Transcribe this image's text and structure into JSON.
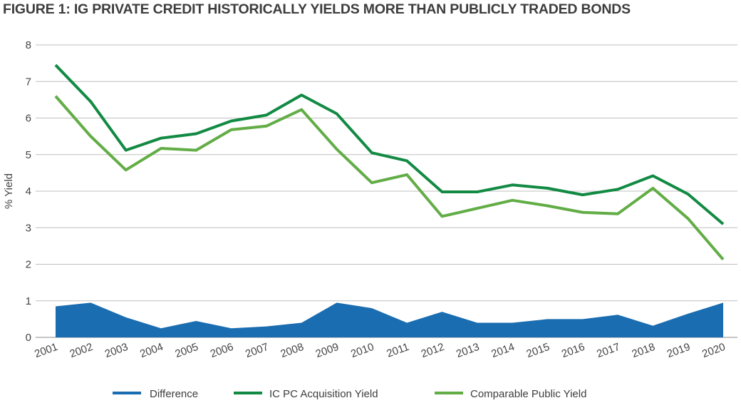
{
  "chart_data": {
    "type": "line",
    "title": "FIGURE 1: IG PRIVATE CREDIT HISTORICALLY YIELDS MORE THAN PUBLICLY TRADED BONDS",
    "xlabel": "",
    "ylabel": "% Yield",
    "ylim": [
      0,
      8
    ],
    "yticks": [
      "0",
      "1",
      "2",
      "3",
      "4",
      "5",
      "6",
      "7",
      "8"
    ],
    "grid": true,
    "legend_position": "bottom",
    "categories": [
      "2001",
      "2002",
      "2003",
      "2004",
      "2005",
      "2006",
      "2007",
      "2008",
      "2009",
      "2010",
      "2011",
      "2012",
      "2013",
      "2014",
      "2015",
      "2016",
      "2017",
      "2018",
      "2019",
      "2020"
    ],
    "series": [
      {
        "name": "Difference",
        "type": "area",
        "color": "#1a6db0",
        "values": [
          0.85,
          0.95,
          0.55,
          0.25,
          0.45,
          0.25,
          0.3,
          0.4,
          0.95,
          0.8,
          0.4,
          0.7,
          0.4,
          0.4,
          0.5,
          0.5,
          0.62,
          0.32,
          0.65,
          0.95
        ]
      },
      {
        "name": "IC PC Acquisition Yield",
        "type": "line",
        "color": "#128a43",
        "values": [
          7.45,
          6.45,
          5.12,
          5.45,
          5.57,
          5.92,
          6.08,
          6.63,
          6.12,
          5.05,
          4.83,
          3.98,
          3.98,
          4.17,
          4.08,
          3.9,
          4.05,
          4.42,
          3.92,
          3.1
        ]
      },
      {
        "name": "Comparable Public Yield",
        "type": "line",
        "color": "#62ad46",
        "values": [
          6.6,
          5.5,
          4.58,
          5.17,
          5.12,
          5.68,
          5.78,
          6.23,
          5.15,
          4.23,
          4.45,
          3.31,
          3.53,
          3.75,
          3.6,
          3.42,
          3.38,
          4.08,
          3.25,
          2.13
        ]
      }
    ]
  }
}
